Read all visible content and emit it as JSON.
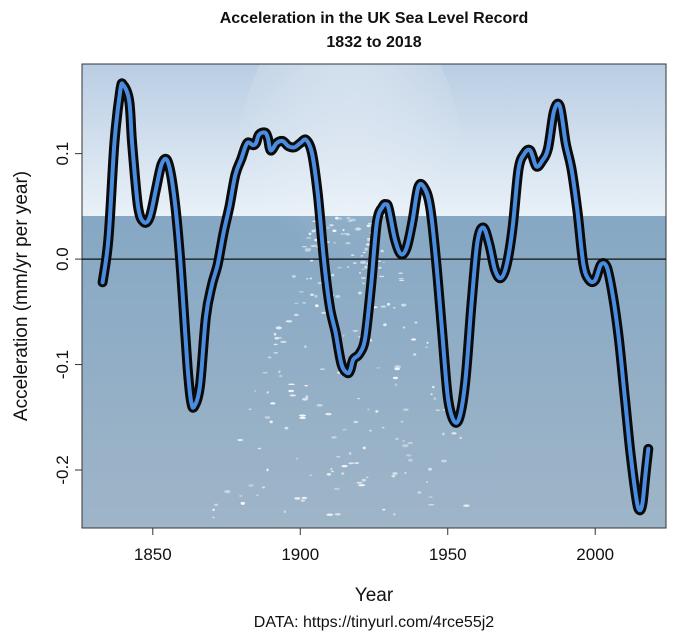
{
  "colors": {
    "sky_top": "#b9cde3",
    "sky_bottom": "#e9f1f8",
    "sea_top": "#86a8c4",
    "sea_bottom": "#9fb5c8",
    "line_outer": "#0b0b0b",
    "line_inner": "#4a8de0",
    "zero_line": "#111111"
  },
  "chart_data": {
    "type": "line",
    "title": "Acceleration in the UK Sea Level Record",
    "subtitle": "1832 to 2018",
    "xlabel": "Year",
    "ylabel": "Acceleration (mm/yr per year)",
    "xlim": [
      1826,
      2024
    ],
    "ylim": [
      -0.255,
      0.185
    ],
    "xticks": [
      1850,
      1900,
      1950,
      2000
    ],
    "yticks": [
      -0.2,
      -0.1,
      0.0,
      0.1
    ],
    "ytick_labels": [
      "-0.2",
      "-0.1",
      "0.0",
      "0.1"
    ],
    "reference_line_y": 0.0,
    "grid": false,
    "legend": "none",
    "caption": "DATA: https://tinyurl.com/4rce55j2",
    "series": [
      {
        "x": [
          1833,
          1835,
          1837,
          1839,
          1840,
          1842,
          1843,
          1845,
          1847,
          1849,
          1851,
          1853,
          1855,
          1857,
          1859,
          1861,
          1862,
          1863,
          1864,
          1866,
          1868,
          1870,
          1872,
          1874,
          1876,
          1878,
          1880,
          1882,
          1884,
          1885,
          1886,
          1888,
          1889,
          1890,
          1892,
          1894,
          1896,
          1898,
          1900,
          1902,
          1904,
          1906,
          1908,
          1910,
          1912,
          1914,
          1916,
          1917,
          1918,
          1920,
          1922,
          1924,
          1926,
          1928,
          1929,
          1930,
          1932,
          1934,
          1936,
          1938,
          1940,
          1942,
          1944,
          1946,
          1948,
          1950,
          1952,
          1954,
          1956,
          1958,
          1960,
          1962,
          1964,
          1966,
          1968,
          1970,
          1972,
          1974,
          1976,
          1978,
          1980,
          1982,
          1984,
          1986,
          1988,
          1990,
          1992,
          1994,
          1996,
          1998,
          2000,
          2002,
          2004,
          2006,
          2008,
          2010,
          2012,
          2014,
          2015,
          2016,
          2017,
          2018
        ],
        "y": [
          -0.022,
          0.02,
          0.11,
          0.16,
          0.165,
          0.15,
          0.11,
          0.05,
          0.035,
          0.04,
          0.065,
          0.09,
          0.093,
          0.065,
          0.01,
          -0.07,
          -0.11,
          -0.135,
          -0.14,
          -0.12,
          -0.055,
          -0.025,
          -0.005,
          0.025,
          0.05,
          0.08,
          0.095,
          0.11,
          0.108,
          0.11,
          0.118,
          0.12,
          0.115,
          0.103,
          0.11,
          0.112,
          0.107,
          0.106,
          0.11,
          0.113,
          0.1,
          0.06,
          0.0,
          -0.045,
          -0.07,
          -0.1,
          -0.108,
          -0.105,
          -0.095,
          -0.09,
          -0.075,
          -0.025,
          0.035,
          0.05,
          0.052,
          0.048,
          0.02,
          0.005,
          0.01,
          0.035,
          0.068,
          0.068,
          0.05,
          0.0,
          -0.065,
          -0.13,
          -0.153,
          -0.15,
          -0.115,
          -0.045,
          0.015,
          0.03,
          0.015,
          -0.01,
          -0.018,
          -0.005,
          0.03,
          0.085,
          0.1,
          0.103,
          0.088,
          0.093,
          0.105,
          0.14,
          0.145,
          0.11,
          0.085,
          0.045,
          -0.005,
          -0.02,
          -0.02,
          -0.005,
          -0.008,
          -0.035,
          -0.075,
          -0.13,
          -0.185,
          -0.228,
          -0.238,
          -0.232,
          -0.205,
          -0.18
        ]
      }
    ]
  }
}
